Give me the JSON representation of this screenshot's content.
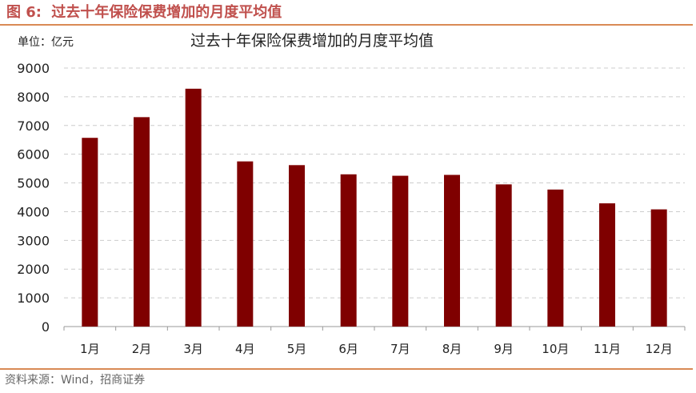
{
  "colors": {
    "header": "#c0504d",
    "accent_rule": "#d98a55",
    "bar": "#7f0000",
    "grid": "#cccccc",
    "axis": "#999999"
  },
  "figure": {
    "label": "图 6:",
    "title": "过去十年保险保费增加的月度平均值"
  },
  "unit_label": "单位：亿元",
  "source": "资料来源：Wind，招商证券",
  "chart_data": {
    "type": "bar",
    "title": "过去十年保险保费增加的月度平均值",
    "xlabel": "",
    "ylabel": "",
    "categories": [
      "1月",
      "2月",
      "3月",
      "4月",
      "5月",
      "6月",
      "7月",
      "8月",
      "9月",
      "10月",
      "11月",
      "12月"
    ],
    "values": [
      6570,
      7290,
      8280,
      5750,
      5620,
      5300,
      5250,
      5280,
      4950,
      4770,
      4290,
      4080
    ],
    "ylim": [
      0,
      9000
    ],
    "yticks": [
      0,
      1000,
      2000,
      3000,
      4000,
      5000,
      6000,
      7000,
      8000,
      9000
    ],
    "grid": true,
    "legend": "none"
  }
}
